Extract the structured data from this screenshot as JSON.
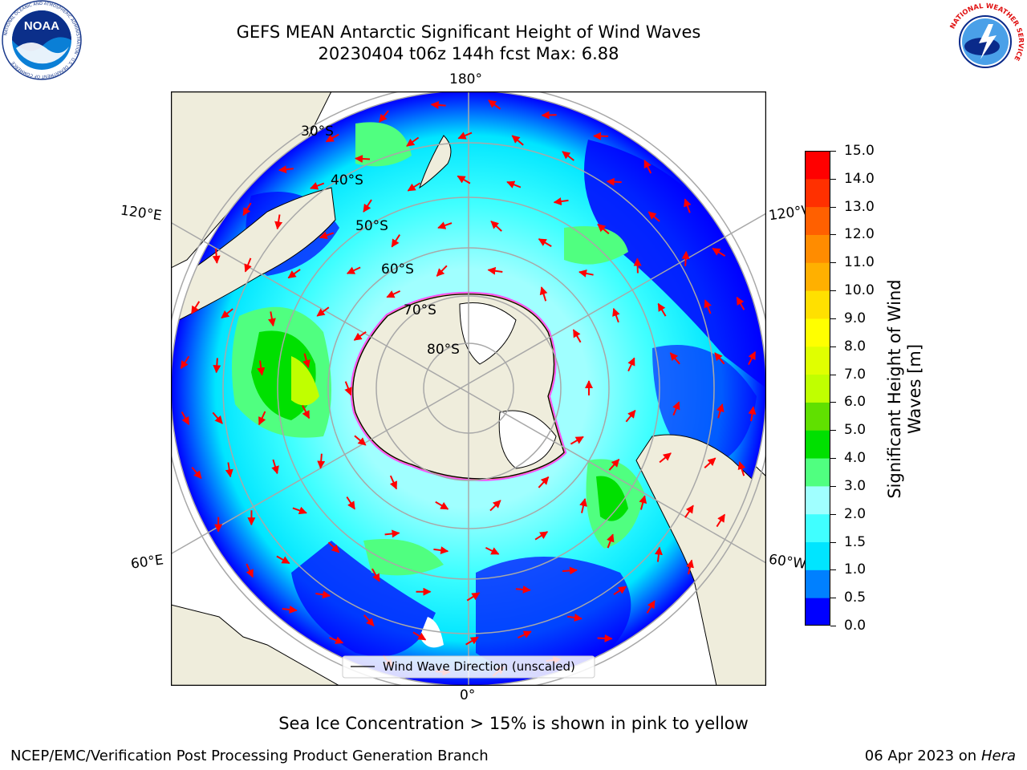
{
  "header": {
    "title_line1": "GEFS MEAN Antarctic Significant Height of Wind Waves",
    "title_line2": "20230404 t06z 144h fcst   Max: 6.88"
  },
  "logos": {
    "noaa": "NOAA",
    "noaa_ring": "NATIONAL OCEANIC AND ATMOSPHERIC ADMINISTRATION · U.S. DEPARTMENT OF COMMERCE",
    "nws_ring": "NATIONAL WEATHER SERVICE"
  },
  "map": {
    "longitude_labels": {
      "top": "180°",
      "bottom": "0°",
      "upper_left": "120°E",
      "upper_right": "120°W",
      "lower_left": "60°E",
      "lower_right": "60°W"
    },
    "latitude_labels": [
      "30°S",
      "40°S",
      "50°S",
      "60°S",
      "70°S",
      "80°S"
    ],
    "legend_label": "Wind Wave Direction (unscaled)",
    "colors": {
      "land": "#efeddc",
      "ice_shelf": "#ffffff",
      "ocean_high_lat": "#0000ff"
    }
  },
  "colorbar": {
    "label": "Significant Height of Wind Waves [m]",
    "ticks": [
      "0.0",
      "0.5",
      "1.0",
      "1.5",
      "2.0",
      "3.0",
      "4.0",
      "5.0",
      "6.0",
      "7.0",
      "8.0",
      "9.0",
      "10.0",
      "11.0",
      "12.0",
      "13.0",
      "14.0",
      "15.0"
    ],
    "colors": [
      "#0000ff",
      "#0080ff",
      "#00e5ff",
      "#40ffff",
      "#a0ffff",
      "#50ff80",
      "#00e000",
      "#60e000",
      "#c0ff00",
      "#e0ff00",
      "#ffff00",
      "#ffe000",
      "#ffb000",
      "#ff8c00",
      "#ff6000",
      "#ff3000",
      "#ff0000"
    ]
  },
  "footer": {
    "note": "Sea Ice Concentration > 15% is shown in pink to yellow",
    "credit": "NCEP/EMC/Verification Post Processing Product Generation Branch",
    "date": "06 Apr 2023 on",
    "machine": "Hera"
  }
}
